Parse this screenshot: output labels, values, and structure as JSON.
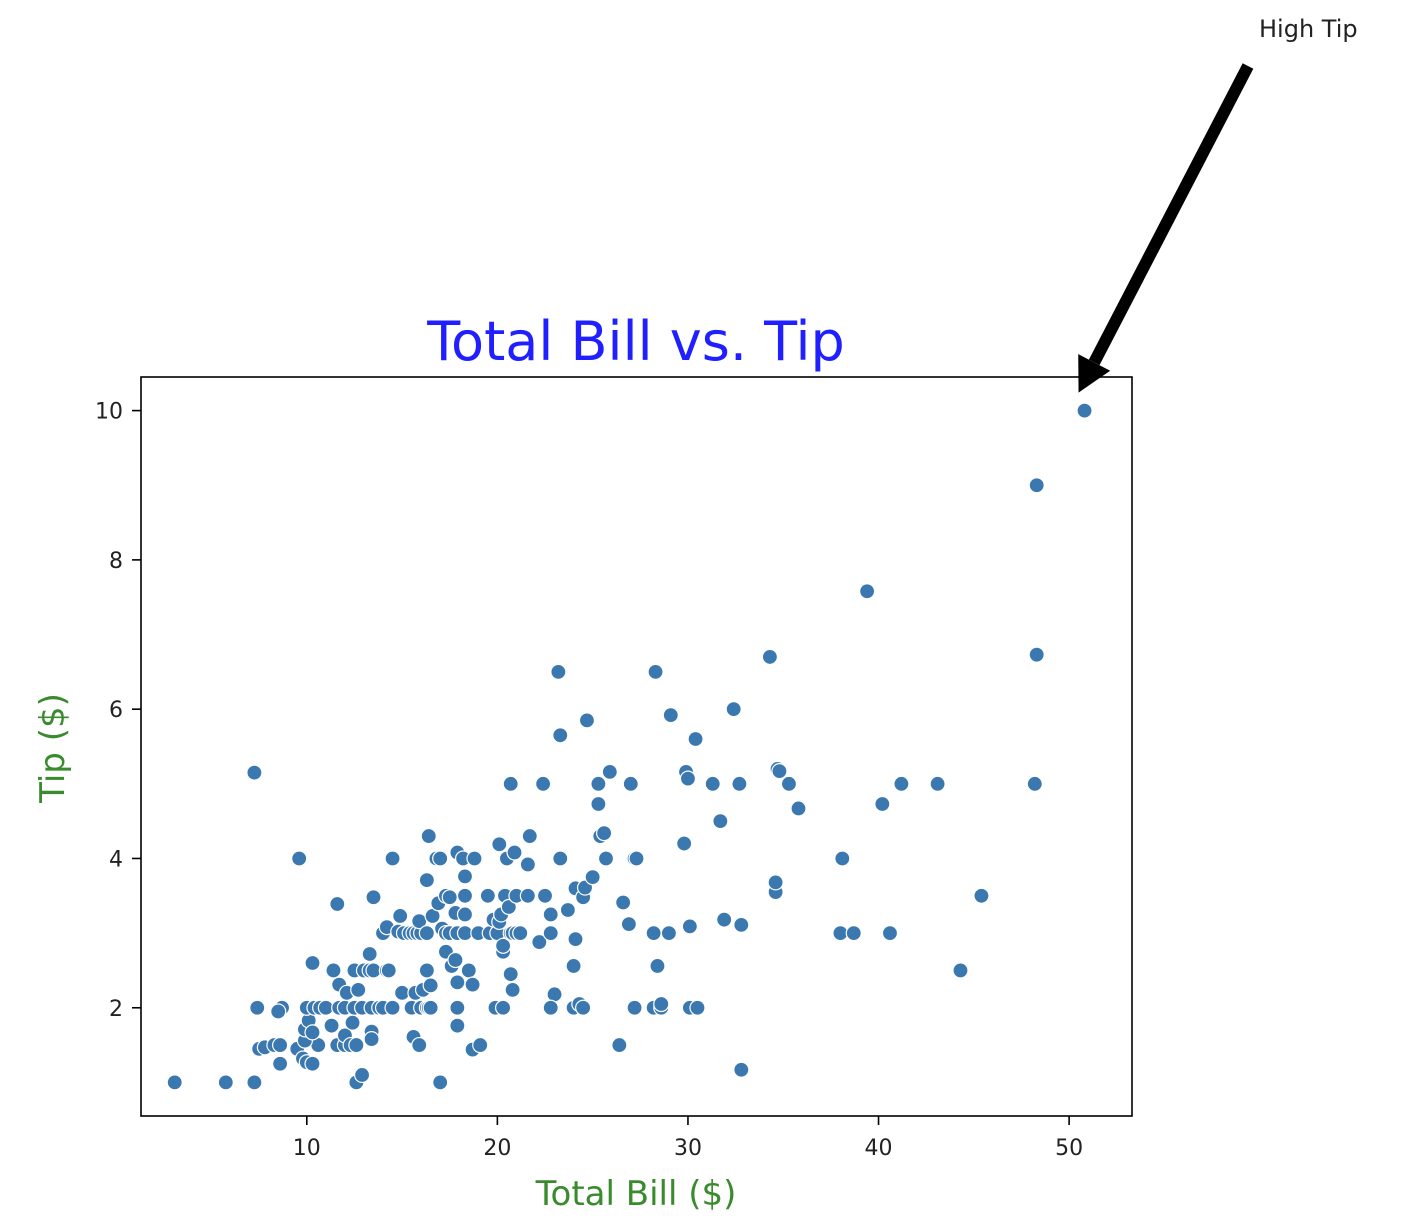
{
  "chart_data": {
    "type": "scatter",
    "title": "Total Bill vs. Tip",
    "xlabel": "Total Bill ($)",
    "ylabel": "Tip ($)",
    "xlim": [
      1.3,
      53.3
    ],
    "ylim": [
      0.55,
      10.45
    ],
    "xticks": [
      10,
      20,
      30,
      40,
      50
    ],
    "yticks": [
      2,
      4,
      6,
      8,
      10
    ],
    "grid": false,
    "annotation": {
      "text": "High Tip",
      "x": 50.81,
      "y": 10.0
    },
    "points": [
      [
        3.07,
        1.0
      ],
      [
        5.75,
        1.0
      ],
      [
        7.25,
        1.0
      ],
      [
        17.0,
        1.0
      ],
      [
        12.6,
        1.0
      ],
      [
        12.9,
        1.1
      ],
      [
        7.25,
        5.15
      ],
      [
        9.6,
        4.0
      ],
      [
        7.4,
        2.0
      ],
      [
        8.7,
        2.0
      ],
      [
        8.5,
        1.95
      ],
      [
        7.5,
        1.45
      ],
      [
        7.8,
        1.47
      ],
      [
        8.3,
        1.5
      ],
      [
        8.6,
        1.5
      ],
      [
        8.6,
        1.25
      ],
      [
        9.5,
        1.45
      ],
      [
        9.8,
        1.32
      ],
      [
        10.0,
        1.27
      ],
      [
        10.3,
        1.25
      ],
      [
        10.6,
        1.5
      ],
      [
        9.9,
        1.56
      ],
      [
        9.9,
        1.71
      ],
      [
        10.1,
        1.83
      ],
      [
        10.3,
        1.67
      ],
      [
        10.0,
        2.0
      ],
      [
        10.4,
        2.0
      ],
      [
        10.7,
        2.0
      ],
      [
        11.0,
        2.0
      ],
      [
        10.3,
        2.6
      ],
      [
        11.3,
        1.76
      ],
      [
        11.6,
        1.5
      ],
      [
        12.0,
        1.5
      ],
      [
        12.0,
        1.63
      ],
      [
        12.3,
        1.5
      ],
      [
        12.6,
        1.5
      ],
      [
        12.4,
        1.8
      ],
      [
        11.7,
        2.0
      ],
      [
        12.0,
        2.0
      ],
      [
        12.5,
        2.0
      ],
      [
        12.9,
        2.0
      ],
      [
        13.4,
        2.0
      ],
      [
        13.8,
        2.0
      ],
      [
        14.0,
        2.0
      ],
      [
        14.5,
        2.0
      ],
      [
        11.4,
        2.5
      ],
      [
        11.7,
        2.31
      ],
      [
        12.1,
        2.2
      ],
      [
        12.5,
        2.5
      ],
      [
        12.7,
        2.24
      ],
      [
        13.0,
        2.5
      ],
      [
        13.3,
        2.5
      ],
      [
        13.3,
        2.72
      ],
      [
        13.4,
        1.68
      ],
      [
        13.4,
        1.58
      ],
      [
        13.5,
        2.5
      ],
      [
        14.2,
        2.5
      ],
      [
        14.3,
        2.5
      ],
      [
        11.6,
        3.39
      ],
      [
        13.5,
        3.48
      ],
      [
        14.0,
        3.0
      ],
      [
        14.2,
        3.08
      ],
      [
        14.8,
        3.02
      ],
      [
        15.1,
        3.0
      ],
      [
        15.4,
        3.0
      ],
      [
        15.6,
        3.0
      ],
      [
        15.8,
        3.0
      ],
      [
        16.0,
        3.0
      ],
      [
        15.9,
        3.16
      ],
      [
        16.3,
        3.0
      ],
      [
        14.5,
        4.0
      ],
      [
        14.9,
        3.23
      ],
      [
        15.0,
        2.2
      ],
      [
        15.5,
        2.0
      ],
      [
        15.6,
        1.61
      ],
      [
        15.7,
        2.2
      ],
      [
        15.9,
        1.5
      ],
      [
        16.0,
        2.0
      ],
      [
        16.1,
        2.24
      ],
      [
        16.3,
        2.0
      ],
      [
        16.4,
        2.0
      ],
      [
        16.5,
        2.0
      ],
      [
        16.3,
        2.5
      ],
      [
        16.5,
        2.3
      ],
      [
        16.3,
        3.71
      ],
      [
        16.4,
        4.3
      ],
      [
        16.6,
        3.23
      ],
      [
        16.8,
        4.0
      ],
      [
        17.0,
        4.0
      ],
      [
        16.9,
        3.4
      ],
      [
        17.1,
        3.06
      ],
      [
        17.3,
        3.0
      ],
      [
        17.5,
        3.0
      ],
      [
        17.3,
        3.5
      ],
      [
        17.5,
        3.48
      ],
      [
        17.3,
        2.75
      ],
      [
        17.6,
        2.56
      ],
      [
        17.8,
        2.64
      ],
      [
        17.9,
        2.34
      ],
      [
        17.9,
        2.0
      ],
      [
        17.9,
        1.76
      ],
      [
        17.8,
        3.27
      ],
      [
        17.9,
        3.0
      ],
      [
        17.9,
        4.08
      ],
      [
        18.2,
        4.0
      ],
      [
        18.3,
        3.5
      ],
      [
        18.3,
        3.76
      ],
      [
        18.3,
        3.25
      ],
      [
        18.5,
        2.5
      ],
      [
        18.3,
        3.0
      ],
      [
        18.7,
        2.31
      ],
      [
        18.8,
        4.0
      ],
      [
        19.0,
        3.0
      ],
      [
        18.7,
        1.44
      ],
      [
        19.1,
        1.5
      ],
      [
        19.5,
        3.5
      ],
      [
        19.6,
        3.0
      ],
      [
        19.8,
        3.18
      ],
      [
        19.9,
        2.0
      ],
      [
        20.1,
        4.19
      ],
      [
        20.0,
        3.0
      ],
      [
        20.1,
        3.15
      ],
      [
        20.2,
        3.25
      ],
      [
        20.3,
        2.75
      ],
      [
        20.3,
        2.83
      ],
      [
        20.4,
        3.5
      ],
      [
        20.3,
        2.0
      ],
      [
        20.5,
        4.0
      ],
      [
        20.7,
        3.0
      ],
      [
        20.6,
        3.35
      ],
      [
        20.8,
        3.0
      ],
      [
        20.7,
        2.45
      ],
      [
        20.8,
        2.24
      ],
      [
        20.9,
        4.08
      ],
      [
        21.0,
        3.5
      ],
      [
        21.0,
        3.0
      ],
      [
        21.2,
        3.0
      ],
      [
        20.7,
        5.0
      ],
      [
        21.6,
        3.92
      ],
      [
        21.7,
        4.3
      ],
      [
        21.6,
        3.5
      ],
      [
        22.2,
        2.88
      ],
      [
        22.4,
        5.0
      ],
      [
        22.5,
        3.5
      ],
      [
        22.8,
        3.25
      ],
      [
        22.8,
        3.0
      ],
      [
        23.0,
        2.18
      ],
      [
        22.8,
        2.0
      ],
      [
        23.2,
        6.5
      ],
      [
        23.3,
        4.0
      ],
      [
        23.3,
        5.65
      ],
      [
        23.7,
        3.31
      ],
      [
        24.0,
        2.56
      ],
      [
        24.1,
        2.92
      ],
      [
        24.1,
        3.6
      ],
      [
        24.0,
        2.0
      ],
      [
        24.3,
        2.05
      ],
      [
        24.5,
        2.0
      ],
      [
        24.5,
        3.48
      ],
      [
        24.6,
        3.61
      ],
      [
        24.7,
        5.85
      ],
      [
        25.0,
        3.75
      ],
      [
        25.3,
        4.73
      ],
      [
        25.3,
        5.0
      ],
      [
        25.4,
        4.3
      ],
      [
        25.6,
        4.34
      ],
      [
        25.7,
        4.0
      ],
      [
        25.9,
        5.16
      ],
      [
        26.4,
        1.5
      ],
      [
        26.6,
        3.41
      ],
      [
        26.9,
        3.12
      ],
      [
        27.0,
        5.0
      ],
      [
        27.2,
        4.0
      ],
      [
        27.3,
        4.0
      ],
      [
        27.2,
        2.0
      ],
      [
        28.2,
        2.0
      ],
      [
        28.3,
        6.5
      ],
      [
        28.4,
        2.56
      ],
      [
        28.6,
        2.0
      ],
      [
        28.6,
        2.05
      ],
      [
        28.2,
        3.0
      ],
      [
        29.0,
        3.0
      ],
      [
        29.1,
        5.92
      ],
      [
        29.8,
        4.2
      ],
      [
        29.9,
        5.16
      ],
      [
        30.0,
        5.07
      ],
      [
        30.1,
        2.0
      ],
      [
        30.1,
        3.09
      ],
      [
        30.4,
        5.6
      ],
      [
        30.5,
        2.0
      ],
      [
        31.3,
        5.0
      ],
      [
        31.7,
        4.5
      ],
      [
        31.9,
        3.18
      ],
      [
        32.4,
        6.0
      ],
      [
        32.7,
        5.0
      ],
      [
        32.8,
        1.17
      ],
      [
        32.8,
        3.11
      ],
      [
        34.3,
        6.7
      ],
      [
        34.6,
        3.55
      ],
      [
        34.6,
        3.68
      ],
      [
        34.7,
        5.2
      ],
      [
        34.8,
        5.17
      ],
      [
        35.3,
        5.0
      ],
      [
        35.8,
        4.67
      ],
      [
        38.0,
        3.0
      ],
      [
        38.1,
        4.0
      ],
      [
        38.7,
        3.0
      ],
      [
        39.4,
        7.58
      ],
      [
        40.2,
        4.73
      ],
      [
        40.6,
        3.0
      ],
      [
        41.2,
        5.0
      ],
      [
        43.1,
        5.0
      ],
      [
        44.3,
        2.5
      ],
      [
        45.4,
        3.5
      ],
      [
        48.2,
        5.0
      ],
      [
        48.3,
        6.73
      ],
      [
        48.3,
        9.0
      ],
      [
        50.81,
        10.0
      ]
    ],
    "colors": {
      "marker": "#3b78b0",
      "marker_edge": "#ffffff",
      "title": "#1f1fff",
      "axis_label": "#3a8a2e",
      "axes": "#000000",
      "arrow": "#000000"
    }
  }
}
